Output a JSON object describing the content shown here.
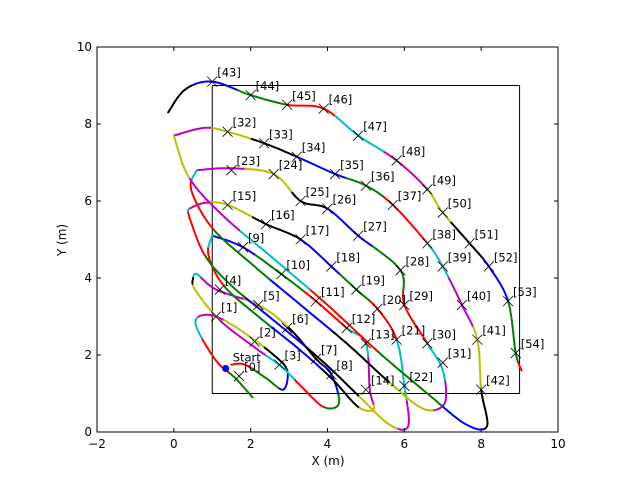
{
  "chart_data": {
    "type": "line",
    "title": "",
    "xlabel": "X (m)",
    "ylabel": "Y (m)",
    "xlim": [
      -2,
      10
    ],
    "ylim": [
      0,
      10
    ],
    "xticks": [
      "−2",
      "0",
      "2",
      "4",
      "6",
      "8",
      "10"
    ],
    "yticks": [
      "0",
      "2",
      "4",
      "6",
      "8",
      "10"
    ],
    "xtick_values": [
      -2,
      0,
      2,
      4,
      6,
      8,
      10
    ],
    "ytick_values": [
      0,
      2,
      4,
      6,
      8,
      10
    ],
    "grid": false,
    "segment_colors": [
      "#008000",
      "#ff0000",
      "#00bfbf",
      "#bf00bf",
      "#bfbf00",
      "#000000",
      "#0000ff"
    ],
    "boundary": {
      "x": [
        1,
        9
      ],
      "y": [
        1,
        9
      ]
    },
    "start": {
      "label": "Start",
      "x": 1.35,
      "y": 1.65,
      "color": "#0000ff"
    },
    "waypoints": [
      {
        "id": "[0]",
        "x": 1.7,
        "y": 1.45
      },
      {
        "id": "[1]",
        "x": 1.1,
        "y": 3.0
      },
      {
        "id": "[2]",
        "x": 2.1,
        "y": 2.35
      },
      {
        "id": "[3]",
        "x": 2.75,
        "y": 1.75
      },
      {
        "id": "[4]",
        "x": 1.2,
        "y": 3.7
      },
      {
        "id": "[5]",
        "x": 2.2,
        "y": 3.3
      },
      {
        "id": "[6]",
        "x": 2.95,
        "y": 2.7
      },
      {
        "id": "[7]",
        "x": 3.7,
        "y": 1.9
      },
      {
        "id": "[8]",
        "x": 4.1,
        "y": 1.5
      },
      {
        "id": "[9]",
        "x": 1.8,
        "y": 4.8
      },
      {
        "id": "[10]",
        "x": 2.8,
        "y": 4.1
      },
      {
        "id": "[11]",
        "x": 3.7,
        "y": 3.4
      },
      {
        "id": "[12]",
        "x": 4.5,
        "y": 2.7
      },
      {
        "id": "[13]",
        "x": 5.0,
        "y": 2.3
      },
      {
        "id": "[14]",
        "x": 5.0,
        "y": 1.1
      },
      {
        "id": "[15]",
        "x": 1.4,
        "y": 5.9
      },
      {
        "id": "[16]",
        "x": 2.4,
        "y": 5.4
      },
      {
        "id": "[17]",
        "x": 3.3,
        "y": 5.0
      },
      {
        "id": "[18]",
        "x": 4.1,
        "y": 4.3
      },
      {
        "id": "[19]",
        "x": 4.75,
        "y": 3.7
      },
      {
        "id": "[20]",
        "x": 5.3,
        "y": 3.2
      },
      {
        "id": "[21]",
        "x": 5.8,
        "y": 2.4
      },
      {
        "id": "[22]",
        "x": 6.0,
        "y": 1.2
      },
      {
        "id": "[23]",
        "x": 1.5,
        "y": 6.8
      },
      {
        "id": "[24]",
        "x": 2.6,
        "y": 6.7
      },
      {
        "id": "[25]",
        "x": 3.3,
        "y": 6.0
      },
      {
        "id": "[26]",
        "x": 4.0,
        "y": 5.8
      },
      {
        "id": "[27]",
        "x": 4.8,
        "y": 5.1
      },
      {
        "id": "[28]",
        "x": 5.9,
        "y": 4.2
      },
      {
        "id": "[29]",
        "x": 6.0,
        "y": 3.3
      },
      {
        "id": "[30]",
        "x": 6.6,
        "y": 2.3
      },
      {
        "id": "[31]",
        "x": 7.0,
        "y": 1.8
      },
      {
        "id": "[32]",
        "x": 1.4,
        "y": 7.8
      },
      {
        "id": "[33]",
        "x": 2.35,
        "y": 7.5
      },
      {
        "id": "[34]",
        "x": 3.2,
        "y": 7.15
      },
      {
        "id": "[35]",
        "x": 4.2,
        "y": 6.7
      },
      {
        "id": "[36]",
        "x": 5.0,
        "y": 6.4
      },
      {
        "id": "[37]",
        "x": 5.7,
        "y": 5.9
      },
      {
        "id": "[38]",
        "x": 6.6,
        "y": 4.9
      },
      {
        "id": "[39]",
        "x": 7.0,
        "y": 4.3
      },
      {
        "id": "[40]",
        "x": 7.5,
        "y": 3.3
      },
      {
        "id": "[41]",
        "x": 7.9,
        "y": 2.4
      },
      {
        "id": "[42]",
        "x": 8.0,
        "y": 1.1
      },
      {
        "id": "[43]",
        "x": 1.0,
        "y": 9.1
      },
      {
        "id": "[44]",
        "x": 2.0,
        "y": 8.75
      },
      {
        "id": "[45]",
        "x": 2.95,
        "y": 8.5
      },
      {
        "id": "[46]",
        "x": 3.9,
        "y": 8.4
      },
      {
        "id": "[47]",
        "x": 4.8,
        "y": 7.7
      },
      {
        "id": "[48]",
        "x": 5.8,
        "y": 7.05
      },
      {
        "id": "[49]",
        "x": 6.6,
        "y": 6.3
      },
      {
        "id": "[50]",
        "x": 7.0,
        "y": 5.7
      },
      {
        "id": "[51]",
        "x": 7.7,
        "y": 4.9
      },
      {
        "id": "[52]",
        "x": 8.2,
        "y": 4.3
      },
      {
        "id": "[53]",
        "x": 8.7,
        "y": 3.4
      },
      {
        "id": "[54]",
        "x": 8.9,
        "y": 2.05
      }
    ],
    "loops": [
      [
        [
          2.05,
          0.9
        ],
        [
          1.6,
          1.4
        ],
        [
          1.1,
          1.85
        ],
        [
          0.6,
          2.7
        ],
        [
          0.65,
          3.0
        ],
        [
          1.1,
          3.0
        ],
        [
          1.8,
          2.6
        ],
        [
          2.6,
          2.0
        ],
        [
          2.95,
          1.6
        ],
        [
          2.85,
          1.1
        ],
        [
          2.4,
          1.4
        ],
        [
          1.85,
          1.75
        ],
        [
          1.5,
          1.75
        ]
      ],
      [
        [
          0.5,
          4.0
        ],
        [
          0.6,
          4.1
        ],
        [
          1.1,
          3.7
        ],
        [
          2.2,
          3.3
        ],
        [
          3.0,
          2.7
        ],
        [
          3.7,
          1.9
        ],
        [
          4.1,
          1.5
        ],
        [
          4.3,
          0.75
        ],
        [
          3.9,
          0.65
        ],
        [
          3.3,
          1.2
        ],
        [
          2.8,
          1.7
        ],
        [
          2.1,
          2.2
        ],
        [
          1.2,
          2.9
        ],
        [
          0.55,
          3.7
        ],
        [
          0.5,
          4.0
        ]
      ],
      [
        [
          1.0,
          5.1
        ],
        [
          1.8,
          4.8
        ],
        [
          2.8,
          4.1
        ],
        [
          3.7,
          3.4
        ],
        [
          4.5,
          2.7
        ],
        [
          5.0,
          2.3
        ],
        [
          5.1,
          1.1
        ],
        [
          5.2,
          0.6
        ],
        [
          4.8,
          0.65
        ],
        [
          4.1,
          1.4
        ],
        [
          3.2,
          2.2
        ],
        [
          2.2,
          3.0
        ],
        [
          1.3,
          3.8
        ],
        [
          0.9,
          4.6
        ],
        [
          1.0,
          5.1
        ]
      ],
      [
        [
          0.4,
          5.8
        ],
        [
          0.8,
          5.95
        ],
        [
          1.4,
          5.9
        ],
        [
          2.4,
          5.4
        ],
        [
          3.3,
          5.0
        ],
        [
          4.1,
          4.3
        ],
        [
          4.75,
          3.7
        ],
        [
          5.3,
          3.2
        ],
        [
          5.8,
          2.4
        ],
        [
          6.0,
          1.2
        ],
        [
          6.1,
          0.15
        ],
        [
          5.6,
          0.2
        ],
        [
          4.8,
          0.95
        ],
        [
          3.8,
          1.9
        ],
        [
          2.6,
          2.9
        ],
        [
          1.5,
          3.8
        ],
        [
          0.8,
          4.6
        ],
        [
          0.4,
          5.6
        ],
        [
          0.4,
          5.8
        ]
      ],
      [
        [
          0.6,
          6.8
        ],
        [
          1.5,
          6.85
        ],
        [
          2.6,
          6.7
        ],
        [
          3.3,
          6.0
        ],
        [
          4.0,
          5.8
        ],
        [
          4.8,
          5.1
        ],
        [
          5.9,
          4.2
        ],
        [
          6.0,
          3.3
        ],
        [
          6.6,
          2.3
        ],
        [
          7.0,
          1.6
        ],
        [
          7.05,
          0.75
        ],
        [
          6.5,
          0.6
        ],
        [
          5.6,
          1.3
        ],
        [
          4.5,
          2.3
        ],
        [
          3.3,
          3.3
        ],
        [
          2.1,
          4.3
        ],
        [
          1.0,
          5.3
        ],
        [
          0.45,
          6.3
        ],
        [
          0.6,
          6.8
        ]
      ],
      [
        [
          0.0,
          7.7
        ],
        [
          0.8,
          7.9
        ],
        [
          1.4,
          7.8
        ],
        [
          2.35,
          7.5
        ],
        [
          3.2,
          7.15
        ],
        [
          4.2,
          6.7
        ],
        [
          5.0,
          6.4
        ],
        [
          5.7,
          5.9
        ],
        [
          6.6,
          4.9
        ],
        [
          7.0,
          4.3
        ],
        [
          7.5,
          3.3
        ],
        [
          7.9,
          2.4
        ],
        [
          8.0,
          1.1
        ],
        [
          8.15,
          0.15
        ],
        [
          7.6,
          0.2
        ],
        [
          6.6,
          1.0
        ],
        [
          5.3,
          2.1
        ],
        [
          4.0,
          3.3
        ],
        [
          2.6,
          4.5
        ],
        [
          1.3,
          5.6
        ],
        [
          0.4,
          6.6
        ],
        [
          0.0,
          7.7
        ]
      ],
      [
        [
          -0.15,
          8.3
        ],
        [
          0.3,
          8.9
        ],
        [
          1.0,
          9.1
        ],
        [
          2.0,
          8.75
        ],
        [
          2.95,
          8.5
        ],
        [
          3.9,
          8.4
        ],
        [
          4.8,
          7.7
        ],
        [
          5.8,
          7.05
        ],
        [
          6.6,
          6.3
        ],
        [
          7.0,
          5.7
        ],
        [
          7.7,
          4.9
        ],
        [
          8.2,
          4.3
        ],
        [
          8.7,
          3.4
        ],
        [
          8.9,
          2.05
        ],
        [
          9.05,
          1.6
        ]
      ]
    ]
  }
}
